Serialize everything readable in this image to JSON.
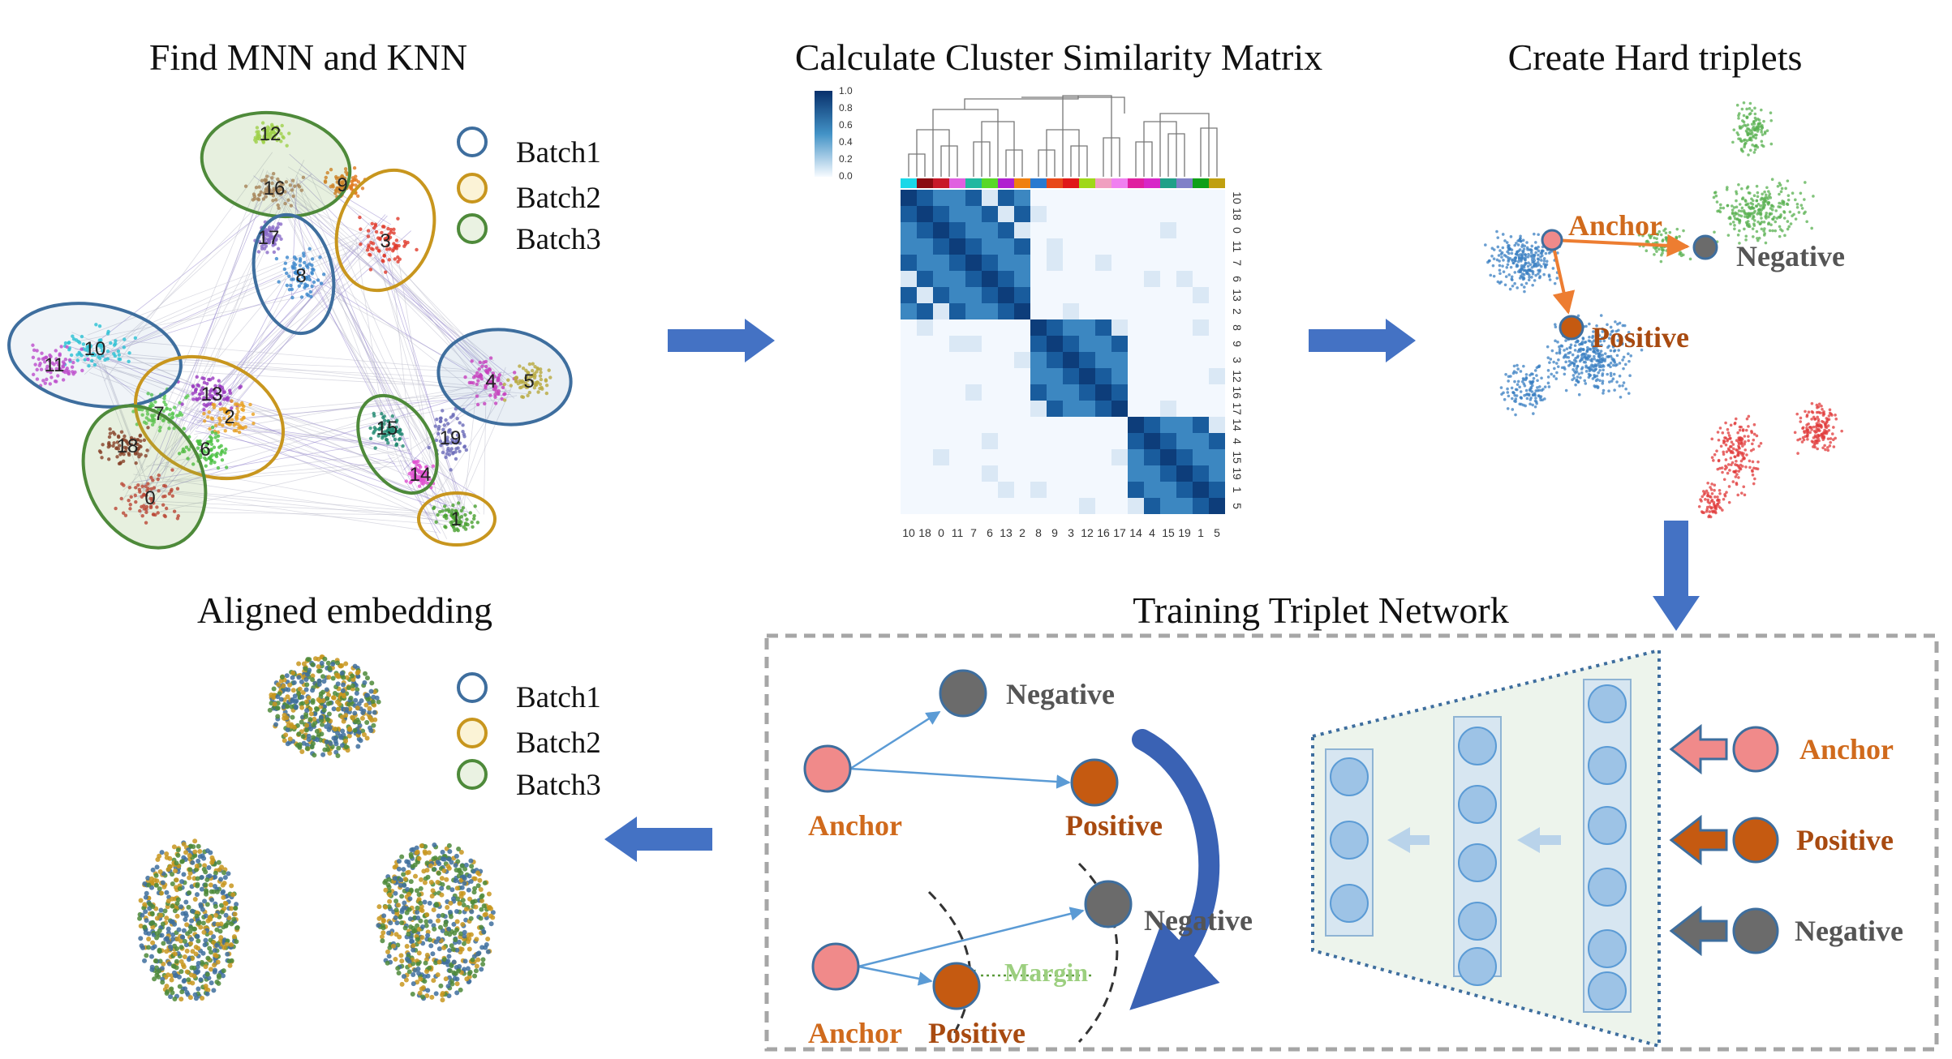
{
  "titles": {
    "find": "Find MNN and KNN",
    "similarity": "Calculate Cluster Similarity Matrix",
    "hard": "Create Hard triplets",
    "aligned": "Aligned embedding",
    "training": "Training Triplet Network"
  },
  "legend": {
    "batch1": "Batch1",
    "batch2": "Batch2",
    "batch3": "Batch3"
  },
  "batch_colors": {
    "batch1": "#3e6e9e",
    "batch2": "#c8961e",
    "batch3": "#4e8a3a"
  },
  "clusters": [
    {
      "id": "12",
      "color": "#a8d94a"
    },
    {
      "id": "16",
      "color": "#b07b5a"
    },
    {
      "id": "9",
      "color": "#e0781c"
    },
    {
      "id": "3",
      "color": "#e03a2a"
    },
    {
      "id": "17",
      "color": "#8a6cc8"
    },
    {
      "id": "8",
      "color": "#3a86cc"
    },
    {
      "id": "10",
      "color": "#28c8d8"
    },
    {
      "id": "11",
      "color": "#c84ad0"
    },
    {
      "id": "7",
      "color": "#58c850"
    },
    {
      "id": "13",
      "color": "#9a3ac0"
    },
    {
      "id": "2",
      "color": "#e8a020"
    },
    {
      "id": "18",
      "color": "#8a2a20"
    },
    {
      "id": "6",
      "color": "#48c040"
    },
    {
      "id": "0",
      "color": "#c83030"
    },
    {
      "id": "4",
      "color": "#d838c0"
    },
    {
      "id": "5",
      "color": "#c8b030"
    },
    {
      "id": "15",
      "color": "#208a70"
    },
    {
      "id": "19",
      "color": "#6a6ab8"
    },
    {
      "id": "14",
      "color": "#e050d0"
    },
    {
      "id": "1",
      "color": "#48a030"
    }
  ],
  "heatmap": {
    "colorbar_ticks": [
      "1.0",
      "0.8",
      "0.6",
      "0.4",
      "0.2",
      "0.0"
    ],
    "x_labels": [
      "10",
      "18",
      "0",
      "11",
      "7",
      "6",
      "13",
      "2",
      "8",
      "9",
      "3",
      "12",
      "16",
      "17",
      "14",
      "4",
      "15",
      "19",
      "1",
      "5"
    ],
    "y_labels": [
      "10",
      "18",
      "0",
      "11",
      "7",
      "6",
      "13",
      "2",
      "8",
      "9",
      "3",
      "12",
      "16",
      "17",
      "14",
      "4",
      "15",
      "19",
      "1",
      "5"
    ],
    "row_colors": [
      "#1ad8e8",
      "#8a0a10",
      "#c81828",
      "#e060e0",
      "#20b8a0",
      "#58d828",
      "#b020d0",
      "#f08010",
      "#2a7ad0",
      "#e84818",
      "#e01818",
      "#a0d818",
      "#f0a0c0",
      "#f080f0",
      "#e020a0",
      "#d828c8",
      "#20a088",
      "#8080c8",
      "#10a018",
      "#c0a010"
    ]
  },
  "triplet_labels": {
    "anchor": "Anchor",
    "negative": "Negative",
    "positive": "Positive",
    "margin": "Margin"
  },
  "colors": {
    "anchor": "#f08a8a",
    "positive": "#c55a11",
    "negative": "#6b6b6b",
    "flow_arrow": "#4472c4",
    "network_node": "#9dc3e6"
  }
}
